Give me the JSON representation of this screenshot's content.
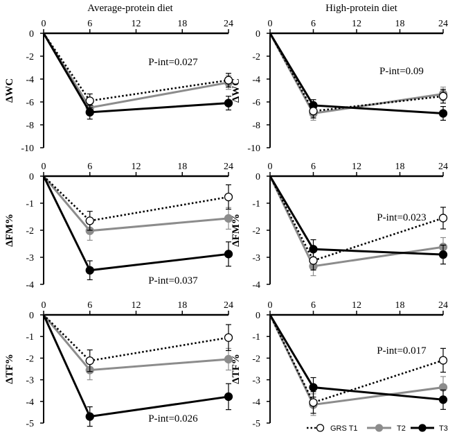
{
  "figure": {
    "column_titles": [
      "Average-protein diet",
      "High-protein diet"
    ]
  },
  "legend": [
    {
      "name": "GRS T1",
      "color": "#000000",
      "marker": "open",
      "dash": true
    },
    {
      "name": "T2",
      "color": "#8c8c8c",
      "marker": "filled",
      "dash": false
    },
    {
      "name": "T3",
      "color": "#000000",
      "marker": "filled",
      "dash": false
    }
  ],
  "chart_data": [
    {
      "type": "line",
      "title": "",
      "xlabel": "",
      "ylabel": "ΔWC",
      "x": [
        0,
        6,
        24
      ],
      "xticks": [
        0,
        6,
        12,
        18,
        24
      ],
      "ylim": [
        -10,
        0
      ],
      "yticks": [
        0,
        -2,
        -4,
        -6,
        -8,
        -10
      ],
      "annotation": "P-int=0.027",
      "series": [
        {
          "name": "GRS T1",
          "values": [
            0,
            -5.9,
            -4.1
          ],
          "err": [
            0,
            0.6,
            0.6
          ]
        },
        {
          "name": "T2",
          "values": [
            0,
            -6.5,
            -4.3
          ],
          "err": [
            0,
            0.6,
            0.6
          ]
        },
        {
          "name": "T3",
          "values": [
            0,
            -6.9,
            -6.1
          ],
          "err": [
            0,
            0.6,
            0.6
          ]
        }
      ]
    },
    {
      "type": "line",
      "title": "",
      "xlabel": "",
      "ylabel": "ΔWC",
      "x": [
        0,
        6,
        24
      ],
      "xticks": [
        0,
        6,
        12,
        18,
        24
      ],
      "ylim": [
        -10,
        0
      ],
      "yticks": [
        0,
        -2,
        -4,
        -6,
        -8,
        -10
      ],
      "annotation": "P-int=0.09",
      "series": [
        {
          "name": "GRS T1",
          "values": [
            0,
            -6.8,
            -5.5
          ],
          "err": [
            0,
            0.6,
            0.6
          ]
        },
        {
          "name": "T2",
          "values": [
            0,
            -7.0,
            -5.3
          ],
          "err": [
            0,
            0.6,
            0.6
          ]
        },
        {
          "name": "T3",
          "values": [
            0,
            -6.3,
            -7.0
          ],
          "err": [
            0,
            0.5,
            0.6
          ]
        }
      ]
    },
    {
      "type": "line",
      "title": "",
      "xlabel": "",
      "ylabel": "ΔFM%",
      "x": [
        0,
        6,
        24
      ],
      "xticks": [
        0,
        6,
        12,
        18,
        24
      ],
      "ylim": [
        -4,
        0
      ],
      "yticks": [
        0,
        -1,
        -2,
        -3,
        -4
      ],
      "annotation": "P-int=0.037",
      "series": [
        {
          "name": "GRS T1",
          "values": [
            0,
            -1.65,
            -0.77
          ],
          "err": [
            0,
            0.35,
            0.45
          ]
        },
        {
          "name": "T2",
          "values": [
            0,
            -2.02,
            -1.56
          ],
          "err": [
            0,
            0.35,
            0.4
          ]
        },
        {
          "name": "T3",
          "values": [
            0,
            -3.48,
            -2.88
          ],
          "err": [
            0,
            0.35,
            0.45
          ]
        }
      ]
    },
    {
      "type": "line",
      "title": "",
      "xlabel": "",
      "ylabel": "ΔFM%",
      "x": [
        0,
        6,
        24
      ],
      "xticks": [
        0,
        6,
        12,
        18,
        24
      ],
      "ylim": [
        -4,
        0
      ],
      "yticks": [
        0,
        -1,
        -2,
        -3,
        -4
      ],
      "annotation": "P-int=0.023",
      "series": [
        {
          "name": "GRS T1",
          "values": [
            0,
            -3.12,
            -1.55
          ],
          "err": [
            0,
            0.35,
            0.4
          ]
        },
        {
          "name": "T2",
          "values": [
            0,
            -3.33,
            -2.62
          ],
          "err": [
            0,
            0.35,
            0.35
          ]
        },
        {
          "name": "T3",
          "values": [
            0,
            -2.7,
            -2.9
          ],
          "err": [
            0,
            0.35,
            0.35
          ]
        }
      ]
    },
    {
      "type": "line",
      "title": "",
      "xlabel": "",
      "ylabel": "ΔTF%",
      "x": [
        0,
        6,
        24
      ],
      "xticks": [
        0,
        6,
        12,
        18,
        24
      ],
      "ylim": [
        -5,
        0
      ],
      "yticks": [
        0,
        -1,
        -2,
        -3,
        -4,
        -5
      ],
      "annotation": "P-int=0.026",
      "series": [
        {
          "name": "GRS T1",
          "values": [
            0,
            -2.12,
            -1.05
          ],
          "err": [
            0,
            0.5,
            0.6
          ]
        },
        {
          "name": "T2",
          "values": [
            0,
            -2.55,
            -2.05
          ],
          "err": [
            0,
            0.45,
            0.5
          ]
        },
        {
          "name": "T3",
          "values": [
            0,
            -4.7,
            -3.78
          ],
          "err": [
            0,
            0.45,
            0.6
          ]
        }
      ]
    },
    {
      "type": "line",
      "title": "",
      "xlabel": "",
      "ylabel": "ΔTF%",
      "x": [
        0,
        6,
        24
      ],
      "xticks": [
        0,
        6,
        12,
        18,
        24
      ],
      "ylim": [
        -5,
        0
      ],
      "yticks": [
        0,
        -1,
        -2,
        -3,
        -4,
        -5
      ],
      "annotation": "P-int=0.017",
      "series": [
        {
          "name": "GRS T1",
          "values": [
            0,
            -4.05,
            -2.1
          ],
          "err": [
            0,
            0.5,
            0.55
          ]
        },
        {
          "name": "T2",
          "values": [
            0,
            -4.15,
            -3.35
          ],
          "err": [
            0,
            0.5,
            0.5
          ]
        },
        {
          "name": "T3",
          "values": [
            0,
            -3.35,
            -3.92
          ],
          "err": [
            0,
            0.45,
            0.45
          ]
        }
      ]
    }
  ]
}
